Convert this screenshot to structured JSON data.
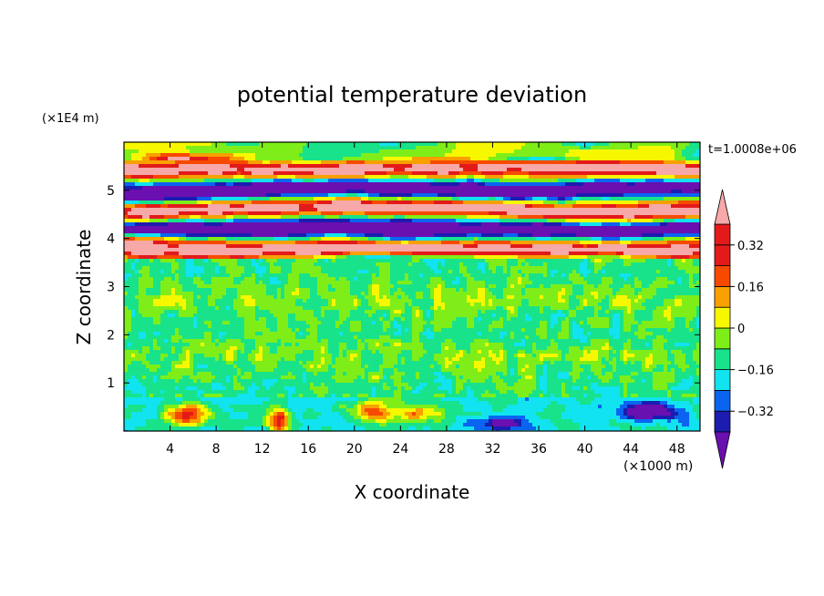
{
  "chart_data": {
    "type": "heatmap",
    "title": "potential temperature deviation",
    "xlabel": "X coordinate",
    "ylabel": "Z coordinate",
    "x_unit": "(×1000 m)",
    "y_unit": "(×1E4 m)",
    "time_label": "t=1.0008e+06",
    "xlim": [
      0,
      50
    ],
    "ylim": [
      0,
      6
    ],
    "x_ticks": [
      4,
      8,
      12,
      16,
      20,
      24,
      28,
      32,
      36,
      40,
      44,
      48
    ],
    "y_ticks": [
      1,
      2,
      3,
      4,
      5
    ],
    "colorbar": {
      "levels": [
        -0.4,
        -0.32,
        -0.24,
        -0.16,
        -0.08,
        0,
        0.08,
        0.16,
        0.24,
        0.32,
        0.4
      ],
      "tick_labels": [
        "0.32",
        "0.16",
        "0",
        "−0.16",
        "−0.32"
      ],
      "tick_values": [
        0.32,
        0.16,
        0,
        -0.16,
        -0.32
      ],
      "colors": [
        "#6a0fb0",
        "#1c1cb0",
        "#0a64f0",
        "#11e3f0",
        "#18e38a",
        "#7fee18",
        "#f7f700",
        "#f7a000",
        "#f74a00",
        "#e31a1a",
        "#f7a8a8"
      ],
      "extend": "both"
    },
    "bands": [
      {
        "z_range": [
          0,
          0.7
        ],
        "pattern": "green-cyan noise with warm eddies near x=4-8, 12-16, 20-28, blue/purple near 44-48"
      },
      {
        "z_range": [
          0.7,
          3.6
        ],
        "pattern": "alternating green / light-green turbulent layers near 0"
      },
      {
        "z_range": [
          3.6,
          5.6
        ],
        "pattern": "alternating purple (negative) and pink (positive) stratified layers"
      },
      {
        "z_range": [
          5.6,
          6.0
        ],
        "pattern": "green with warm and blue lenses"
      }
    ]
  }
}
